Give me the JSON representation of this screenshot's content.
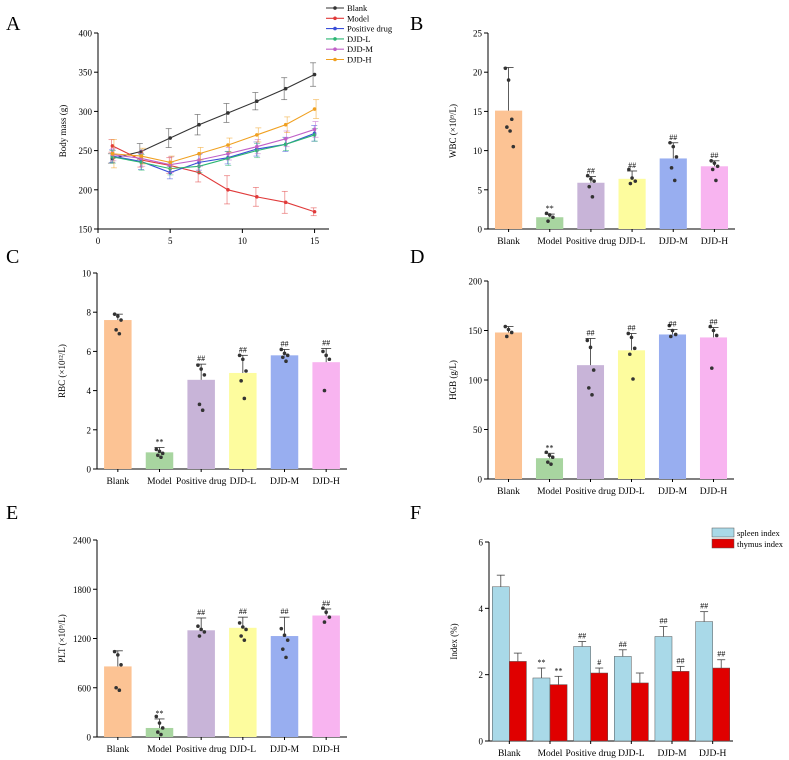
{
  "panels": [
    "A",
    "B",
    "C",
    "D",
    "E",
    "F"
  ],
  "chart_data": [
    {
      "panel": "A",
      "type": "line",
      "ylabel": "Body mass (g)",
      "xlabel": "",
      "xlim": [
        0,
        16
      ],
      "xticks": [
        0,
        5,
        10,
        15
      ],
      "ylim": [
        150,
        400
      ],
      "yticks": [
        150,
        200,
        250,
        300,
        350,
        400
      ],
      "x": [
        1,
        3,
        5,
        7,
        9,
        11,
        13,
        15
      ],
      "series": [
        {
          "name": "Blank",
          "color": "#333333",
          "values": [
            240,
            249,
            266,
            283,
            298,
            313,
            329,
            347
          ],
          "err": [
            6,
            10,
            12,
            13,
            12,
            11,
            14,
            15
          ]
        },
        {
          "name": "Model",
          "color": "#e03a3a",
          "values": [
            256,
            238,
            231,
            222,
            200,
            191,
            184,
            172
          ],
          "err": [
            8,
            9,
            10,
            12,
            18,
            12,
            14,
            5
          ]
        },
        {
          "name": "Positive drug",
          "color": "#3a4fd8",
          "values": [
            243,
            236,
            222,
            235,
            241,
            252,
            258,
            272
          ],
          "err": [
            8,
            10,
            8,
            10,
            8,
            9,
            9,
            10
          ]
        },
        {
          "name": "DJD-L",
          "color": "#2bb673",
          "values": [
            242,
            235,
            227,
            230,
            240,
            250,
            258,
            270
          ],
          "err": [
            8,
            10,
            8,
            8,
            9,
            9,
            8,
            8
          ]
        },
        {
          "name": "DJD-M",
          "color": "#c060c8",
          "values": [
            245,
            240,
            232,
            238,
            246,
            255,
            265,
            277
          ],
          "err": [
            8,
            10,
            10,
            8,
            8,
            9,
            10,
            10
          ]
        },
        {
          "name": "DJD-H",
          "color": "#f0a020",
          "values": [
            246,
            243,
            235,
            246,
            257,
            270,
            283,
            303
          ],
          "err": [
            18,
            10,
            8,
            8,
            9,
            9,
            10,
            12
          ]
        }
      ]
    },
    {
      "panel": "B",
      "type": "bar",
      "ylabel": "WBC (×10⁹/L)",
      "categories": [
        "Blank",
        "Model",
        "Positive drug",
        "DJD-L",
        "DJD-M",
        "DJD-H"
      ],
      "colors": [
        "#fcc394",
        "#a8d5a0",
        "#c8b4d8",
        "#fdfc9e",
        "#98aef0",
        "#f8b4f0"
      ],
      "values": [
        15.1,
        1.5,
        5.9,
        6.4,
        9.0,
        8.0
      ],
      "err": [
        5.5,
        0.4,
        0.8,
        1.0,
        2.0,
        0.7
      ],
      "points": [
        [
          20.5,
          19,
          14,
          13,
          12.5,
          10.5
        ],
        [
          2.0,
          1.8,
          1.5,
          1.0
        ],
        [
          6.8,
          6.4,
          6.1,
          5.4,
          4.1
        ],
        [
          7.6,
          6.5,
          6.1,
          5.8
        ],
        [
          11,
          10.5,
          9.2,
          7.8,
          6.2
        ],
        [
          8.7,
          8.4,
          8.0,
          7.6,
          6.2
        ]
      ],
      "annotations": [
        "",
        "**",
        "##",
        "##",
        "##",
        "##"
      ],
      "ylim": [
        0,
        25
      ],
      "yticks": [
        0,
        5,
        10,
        15,
        20,
        25
      ]
    },
    {
      "panel": "C",
      "type": "bar",
      "ylabel": "RBC (×10¹²/L)",
      "categories": [
        "Blank",
        "Model",
        "Positive drug",
        "DJD-L",
        "DJD-M",
        "DJD-H"
      ],
      "colors": [
        "#fcc394",
        "#a8d5a0",
        "#c8b4d8",
        "#fdfc9e",
        "#98aef0",
        "#f8b4f0"
      ],
      "values": [
        7.6,
        0.85,
        4.55,
        4.9,
        5.8,
        5.45
      ],
      "err": [
        0.3,
        0.25,
        0.8,
        0.9,
        0.3,
        0.7
      ],
      "points": [
        [
          7.9,
          7.8,
          7.6,
          7.1,
          6.9
        ],
        [
          1.0,
          0.9,
          0.8,
          0.7,
          0.6
        ],
        [
          5.3,
          5.1,
          4.8,
          3.3,
          3.0
        ],
        [
          5.8,
          5.6,
          5.0,
          4.5,
          3.6
        ],
        [
          6.1,
          5.9,
          5.8,
          5.7,
          5.5
        ],
        [
          6.0,
          5.8,
          5.6,
          4.0
        ]
      ],
      "annotations": [
        "",
        "**",
        "##",
        "##",
        "##",
        "##"
      ],
      "ylim": [
        0,
        10
      ],
      "yticks": [
        0,
        2,
        4,
        6,
        8,
        10
      ]
    },
    {
      "panel": "D",
      "type": "bar",
      "ylabel": "HGB (g/L)",
      "categories": [
        "Blank",
        "Model",
        "Positive drug",
        "DJD-L",
        "DJD-M",
        "DJD-H"
      ],
      "colors": [
        "#fcc394",
        "#a8d5a0",
        "#c8b4d8",
        "#fdfc9e",
        "#98aef0",
        "#f8b4f0"
      ],
      "values": [
        148,
        21,
        115,
        130,
        146,
        143
      ],
      "err": [
        6,
        5,
        27,
        17,
        5,
        10
      ],
      "points": [
        [
          154,
          151,
          148,
          144
        ],
        [
          27,
          24,
          22,
          17,
          15
        ],
        [
          140,
          133,
          110,
          92,
          85
        ],
        [
          147,
          143,
          132,
          126,
          101
        ],
        [
          155,
          150,
          146,
          144
        ],
        [
          154,
          150,
          145,
          112
        ]
      ],
      "annotations": [
        "",
        "**",
        "##",
        "##",
        "##",
        "##"
      ],
      "ylim": [
        0,
        200
      ],
      "yticks": [
        0,
        50,
        100,
        150,
        200
      ]
    },
    {
      "panel": "E",
      "type": "bar",
      "ylabel": "PLT (×10⁹/L)",
      "categories": [
        "Blank",
        "Model",
        "Positive drug",
        "DJD-L",
        "DJD-M",
        "DJD-H"
      ],
      "colors": [
        "#fcc394",
        "#a8d5a0",
        "#c8b4d8",
        "#fdfc9e",
        "#98aef0",
        "#f8b4f0"
      ],
      "values": [
        860,
        110,
        1300,
        1330,
        1230,
        1480
      ],
      "err": [
        190,
        110,
        150,
        130,
        230,
        80
      ],
      "points": [
        [
          1040,
          1000,
          880,
          600,
          570
        ],
        [
          250,
          170,
          110,
          60,
          30
        ],
        [
          1350,
          1310,
          1280,
          1230
        ],
        [
          1390,
          1340,
          1310,
          1230,
          1180
        ],
        [
          1320,
          1240,
          1180,
          1070,
          970
        ],
        [
          1570,
          1520,
          1460,
          1400
        ]
      ],
      "annotations": [
        "",
        "**",
        "##",
        "##",
        "##",
        "##"
      ],
      "ylim": [
        0,
        2400
      ],
      "yticks": [
        0,
        600,
        1200,
        1800,
        2400
      ]
    },
    {
      "panel": "F",
      "type": "bar",
      "ylabel": "Index (%)",
      "categories": [
        "Blank",
        "Model",
        "Positive drug",
        "DJD-L",
        "DJD-M",
        "DJD-H"
      ],
      "series": [
        {
          "name": "spleen index",
          "color": "#a9d9e8",
          "values": [
            4.65,
            1.9,
            2.85,
            2.55,
            3.15,
            3.6
          ],
          "err": [
            0.35,
            0.3,
            0.15,
            0.2,
            0.3,
            0.3
          ],
          "annotations": [
            "",
            "**",
            "##",
            "##",
            "##",
            "##"
          ]
        },
        {
          "name": "thymus index",
          "color": "#e00000",
          "values": [
            2.4,
            1.7,
            2.05,
            1.75,
            2.1,
            2.2
          ],
          "err": [
            0.25,
            0.25,
            0.15,
            0.3,
            0.15,
            0.25
          ],
          "annotations": [
            "",
            "**",
            "#",
            "",
            "##",
            "##"
          ]
        }
      ],
      "ylim": [
        0,
        6
      ],
      "yticks": [
        0,
        2,
        4,
        6
      ],
      "legend": "top-right"
    }
  ]
}
